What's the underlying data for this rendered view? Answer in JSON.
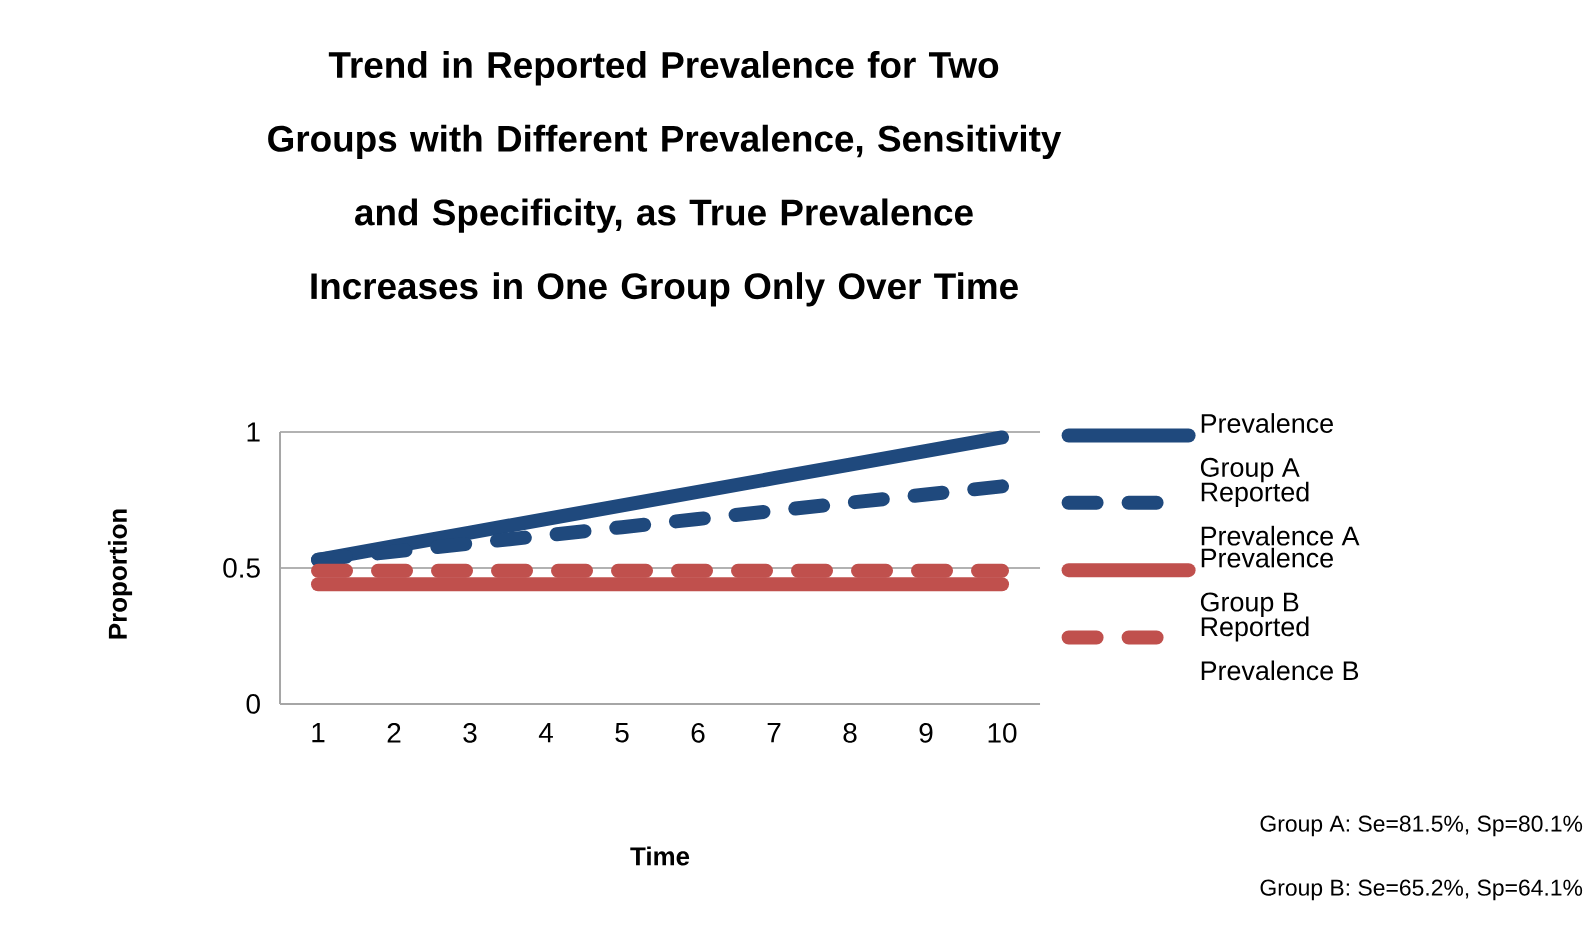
{
  "chart_data": {
    "type": "line",
    "title": "Trend in Reported Prevalence for Two Groups with Different  Prevalence, Sensitivity and Specificity, as True Prevalence Increases in One Group Only Over Time",
    "xlabel": "Time",
    "ylabel": "Proportion",
    "x": [
      1,
      2,
      3,
      4,
      5,
      6,
      7,
      8,
      9,
      10
    ],
    "xlim": [
      0.5,
      10.5
    ],
    "xticks": [
      1,
      2,
      3,
      4,
      5,
      6,
      7,
      8,
      9,
      10
    ],
    "ylim": [
      0,
      1
    ],
    "yticks": [
      0,
      0.5,
      1
    ],
    "grid": "y",
    "legend": "right",
    "marker": "none",
    "series": [
      {
        "name": "Prevalence Group A",
        "color": "#1f497d",
        "line_style": "solid",
        "values": [
          0.53,
          0.58,
          0.63,
          0.68,
          0.73,
          0.78,
          0.83,
          0.88,
          0.93,
          0.98
        ]
      },
      {
        "name": "Reported Prevalence A",
        "color": "#1f497d",
        "line_style": "dashed",
        "values": [
          0.53,
          0.56,
          0.59,
          0.62,
          0.65,
          0.68,
          0.71,
          0.74,
          0.77,
          0.8
        ]
      },
      {
        "name": "Prevalence Group B",
        "color": "#c0504d",
        "line_style": "solid",
        "values": [
          0.44,
          0.44,
          0.44,
          0.44,
          0.44,
          0.44,
          0.44,
          0.44,
          0.44,
          0.44
        ]
      },
      {
        "name": "Reported Prevalence B",
        "color": "#c0504d",
        "line_style": "dashed",
        "values": [
          0.49,
          0.49,
          0.49,
          0.49,
          0.49,
          0.49,
          0.49,
          0.49,
          0.49,
          0.49
        ]
      }
    ],
    "annotations": [
      "Group A:  Se=81.5%, Sp=80.1%",
      "Group B:  Se=65.2%, Sp=64.1%"
    ]
  }
}
